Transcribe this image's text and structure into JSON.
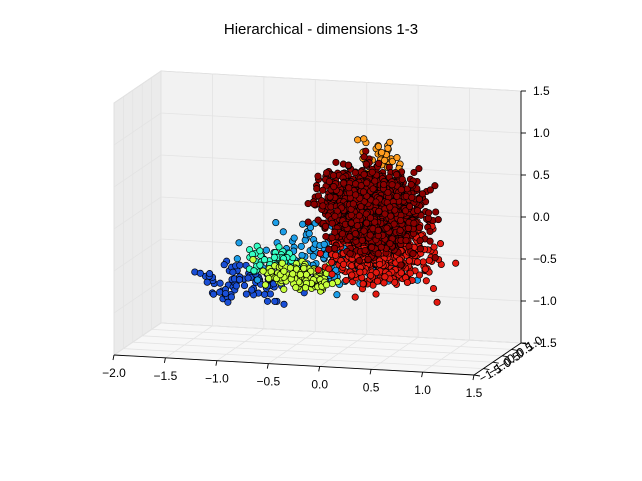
{
  "chart_data": {
    "type": "scatter",
    "projection": "3d",
    "title": "Hierarchical - dimensions 1-3",
    "axes": {
      "x": {
        "ticks": [
          "−2.0",
          "−1.5",
          "−1.0",
          "−0.5",
          "0.0",
          "0.5",
          "1.0",
          "1.5"
        ],
        "lim": [
          -2.0,
          1.5
        ]
      },
      "y": {
        "ticks": [
          "−1.5",
          "−1.0",
          "−0.5",
          "0.0",
          "0.5",
          "1.0"
        ],
        "lim": [
          -1.5,
          1.0
        ]
      },
      "z": {
        "ticks": [
          "−1.5",
          "−1.0",
          "−0.5",
          "0.0",
          "0.5",
          "1.0",
          "1.5"
        ],
        "lim": [
          -1.5,
          1.5
        ]
      }
    },
    "grid": true,
    "legend": "none",
    "colormap": "jet",
    "clusters": [
      {
        "color": "#8b0000",
        "center": [
          0.25,
          0.0,
          0.15
        ],
        "spread": [
          0.45,
          0.35,
          0.45
        ],
        "approx_points": 2500
      },
      {
        "color": "#e3180f",
        "center": [
          0.35,
          0.0,
          -0.35
        ],
        "spread": [
          0.5,
          0.3,
          0.4
        ],
        "approx_points": 900
      },
      {
        "color": "#ff9d1f",
        "center": [
          0.3,
          0.3,
          0.75
        ],
        "spread": [
          0.3,
          0.2,
          0.2
        ],
        "approx_points": 40
      },
      {
        "color": "#c6ff3a",
        "center": [
          -0.45,
          -0.2,
          -0.65
        ],
        "spread": [
          0.35,
          0.2,
          0.15
        ],
        "approx_points": 120
      },
      {
        "color": "#35ffc4",
        "center": [
          -0.7,
          -0.1,
          -0.5
        ],
        "spread": [
          0.3,
          0.2,
          0.15
        ],
        "approx_points": 60
      },
      {
        "color": "#1c9ee8",
        "center": [
          -0.2,
          0.0,
          -0.45
        ],
        "spread": [
          0.7,
          0.3,
          0.35
        ],
        "approx_points": 150
      },
      {
        "color": "#1a4fd6",
        "center": [
          -1.0,
          -0.3,
          -0.75
        ],
        "spread": [
          0.5,
          0.2,
          0.2
        ],
        "approx_points": 80
      }
    ]
  }
}
